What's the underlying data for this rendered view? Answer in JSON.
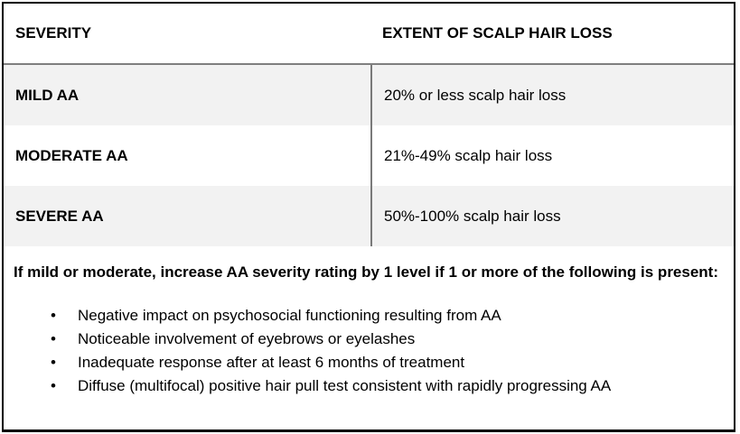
{
  "table": {
    "header": {
      "severity_label": "SEVERITY",
      "extent_label": "EXTENT OF SCALP HAIR LOSS"
    },
    "rows": [
      {
        "severity": "MILD AA",
        "extent": "20% or less scalp hair loss"
      },
      {
        "severity": "MODERATE AA",
        "extent": "21%-49% scalp hair loss"
      },
      {
        "severity": "SEVERE AA",
        "extent": "50%-100% scalp hair loss"
      }
    ]
  },
  "footnote": {
    "intro": "If mild or moderate, increase AA severity rating by 1 level if 1 or more of the following is present:",
    "bullet_glyph": "•",
    "bullets": [
      "Negative impact on psychosocial functioning resulting from AA",
      "Noticeable involvement of eyebrows or eyelashes",
      "Inadequate response after at least 6 months of treatment",
      "Diffuse (multifocal) positive hair pull test consistent with rapidly progressing AA"
    ]
  },
  "colors": {
    "outer_border": "#000000",
    "header_divider": "#7f7f7f",
    "column_divider": "#7a7a7a",
    "shaded_row_bg": "#f2f2f2",
    "text": "#000000"
  }
}
